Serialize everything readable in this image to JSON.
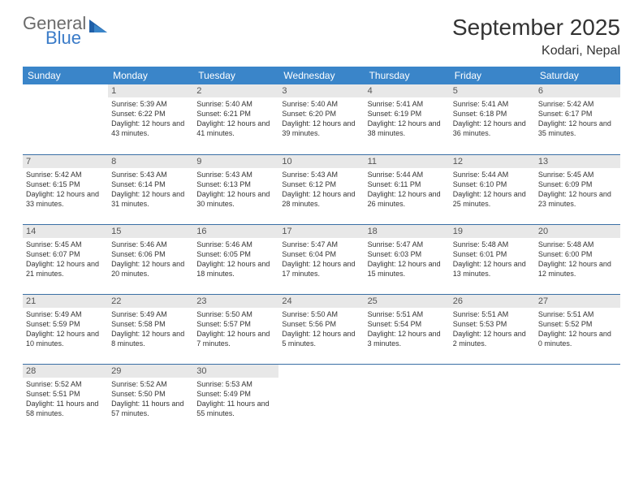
{
  "brand": {
    "line1": "General",
    "line2": "Blue"
  },
  "title": "September 2025",
  "location": "Kodari, Nepal",
  "colors": {
    "header_bg": "#3a85c9",
    "header_text": "#ffffff",
    "daynum_bg": "#e8e8e8",
    "row_border": "#3a6fa5",
    "brand_gray": "#6b6b6b",
    "brand_blue": "#3a7bc8"
  },
  "weekdays": [
    "Sunday",
    "Monday",
    "Tuesday",
    "Wednesday",
    "Thursday",
    "Friday",
    "Saturday"
  ],
  "first_weekday_index": 1,
  "days": [
    {
      "n": 1,
      "sunrise": "5:39 AM",
      "sunset": "6:22 PM",
      "daylight": "12 hours and 43 minutes."
    },
    {
      "n": 2,
      "sunrise": "5:40 AM",
      "sunset": "6:21 PM",
      "daylight": "12 hours and 41 minutes."
    },
    {
      "n": 3,
      "sunrise": "5:40 AM",
      "sunset": "6:20 PM",
      "daylight": "12 hours and 39 minutes."
    },
    {
      "n": 4,
      "sunrise": "5:41 AM",
      "sunset": "6:19 PM",
      "daylight": "12 hours and 38 minutes."
    },
    {
      "n": 5,
      "sunrise": "5:41 AM",
      "sunset": "6:18 PM",
      "daylight": "12 hours and 36 minutes."
    },
    {
      "n": 6,
      "sunrise": "5:42 AM",
      "sunset": "6:17 PM",
      "daylight": "12 hours and 35 minutes."
    },
    {
      "n": 7,
      "sunrise": "5:42 AM",
      "sunset": "6:15 PM",
      "daylight": "12 hours and 33 minutes."
    },
    {
      "n": 8,
      "sunrise": "5:43 AM",
      "sunset": "6:14 PM",
      "daylight": "12 hours and 31 minutes."
    },
    {
      "n": 9,
      "sunrise": "5:43 AM",
      "sunset": "6:13 PM",
      "daylight": "12 hours and 30 minutes."
    },
    {
      "n": 10,
      "sunrise": "5:43 AM",
      "sunset": "6:12 PM",
      "daylight": "12 hours and 28 minutes."
    },
    {
      "n": 11,
      "sunrise": "5:44 AM",
      "sunset": "6:11 PM",
      "daylight": "12 hours and 26 minutes."
    },
    {
      "n": 12,
      "sunrise": "5:44 AM",
      "sunset": "6:10 PM",
      "daylight": "12 hours and 25 minutes."
    },
    {
      "n": 13,
      "sunrise": "5:45 AM",
      "sunset": "6:09 PM",
      "daylight": "12 hours and 23 minutes."
    },
    {
      "n": 14,
      "sunrise": "5:45 AM",
      "sunset": "6:07 PM",
      "daylight": "12 hours and 21 minutes."
    },
    {
      "n": 15,
      "sunrise": "5:46 AM",
      "sunset": "6:06 PM",
      "daylight": "12 hours and 20 minutes."
    },
    {
      "n": 16,
      "sunrise": "5:46 AM",
      "sunset": "6:05 PM",
      "daylight": "12 hours and 18 minutes."
    },
    {
      "n": 17,
      "sunrise": "5:47 AM",
      "sunset": "6:04 PM",
      "daylight": "12 hours and 17 minutes."
    },
    {
      "n": 18,
      "sunrise": "5:47 AM",
      "sunset": "6:03 PM",
      "daylight": "12 hours and 15 minutes."
    },
    {
      "n": 19,
      "sunrise": "5:48 AM",
      "sunset": "6:01 PM",
      "daylight": "12 hours and 13 minutes."
    },
    {
      "n": 20,
      "sunrise": "5:48 AM",
      "sunset": "6:00 PM",
      "daylight": "12 hours and 12 minutes."
    },
    {
      "n": 21,
      "sunrise": "5:49 AM",
      "sunset": "5:59 PM",
      "daylight": "12 hours and 10 minutes."
    },
    {
      "n": 22,
      "sunrise": "5:49 AM",
      "sunset": "5:58 PM",
      "daylight": "12 hours and 8 minutes."
    },
    {
      "n": 23,
      "sunrise": "5:50 AM",
      "sunset": "5:57 PM",
      "daylight": "12 hours and 7 minutes."
    },
    {
      "n": 24,
      "sunrise": "5:50 AM",
      "sunset": "5:56 PM",
      "daylight": "12 hours and 5 minutes."
    },
    {
      "n": 25,
      "sunrise": "5:51 AM",
      "sunset": "5:54 PM",
      "daylight": "12 hours and 3 minutes."
    },
    {
      "n": 26,
      "sunrise": "5:51 AM",
      "sunset": "5:53 PM",
      "daylight": "12 hours and 2 minutes."
    },
    {
      "n": 27,
      "sunrise": "5:51 AM",
      "sunset": "5:52 PM",
      "daylight": "12 hours and 0 minutes."
    },
    {
      "n": 28,
      "sunrise": "5:52 AM",
      "sunset": "5:51 PM",
      "daylight": "11 hours and 58 minutes."
    },
    {
      "n": 29,
      "sunrise": "5:52 AM",
      "sunset": "5:50 PM",
      "daylight": "11 hours and 57 minutes."
    },
    {
      "n": 30,
      "sunrise": "5:53 AM",
      "sunset": "5:49 PM",
      "daylight": "11 hours and 55 minutes."
    }
  ],
  "labels": {
    "sunrise": "Sunrise:",
    "sunset": "Sunset:",
    "daylight": "Daylight:"
  }
}
